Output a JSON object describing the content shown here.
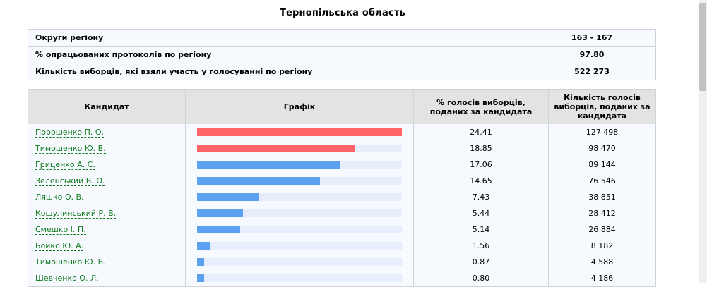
{
  "page": {
    "title": "Тернопільська область"
  },
  "summary": [
    {
      "label": "Округи регіону",
      "value": "163 - 167"
    },
    {
      "label": "% опрацьованих протоколів по регіону",
      "value": "97.80"
    },
    {
      "label": "Кількість виборців, які взяли участь у голосуванні по регіону",
      "value": "522 273"
    }
  ],
  "table": {
    "headers": {
      "candidate": "Кандидат",
      "graph": "Графік",
      "percent": "% голосів виборців, поданих за кандидата",
      "votes": "Кількість голосів виборців, поданих за кандидата"
    },
    "rows": [
      {
        "name": "Порошенко П. О.",
        "percent": "24.41",
        "votes": "127 498"
      },
      {
        "name": "Тимошенко Ю. В.",
        "percent": "18.85",
        "votes": "98 470"
      },
      {
        "name": "Гриценко А. С.",
        "percent": "17.06",
        "votes": "89 144"
      },
      {
        "name": "Зеленський В. О.",
        "percent": "14.65",
        "votes": "76 546"
      },
      {
        "name": "Ляшко О. В.",
        "percent": "7.43",
        "votes": "38 851"
      },
      {
        "name": "Кошулинський Р. В.",
        "percent": "5.44",
        "votes": "28 412"
      },
      {
        "name": "Смешко І. П.",
        "percent": "5.14",
        "votes": "26 884"
      },
      {
        "name": "Бойко Ю. А.",
        "percent": "1.56",
        "votes": "8 182"
      },
      {
        "name": "Тимошенко Ю. В.",
        "percent": "0.87",
        "votes": "4 588"
      },
      {
        "name": "Шевченко О. Л.",
        "percent": "0.80",
        "votes": "4 186"
      }
    ]
  },
  "colors": {
    "top": "#ff6468",
    "other": "#5ca0f2",
    "track": "#e6eefb"
  }
}
